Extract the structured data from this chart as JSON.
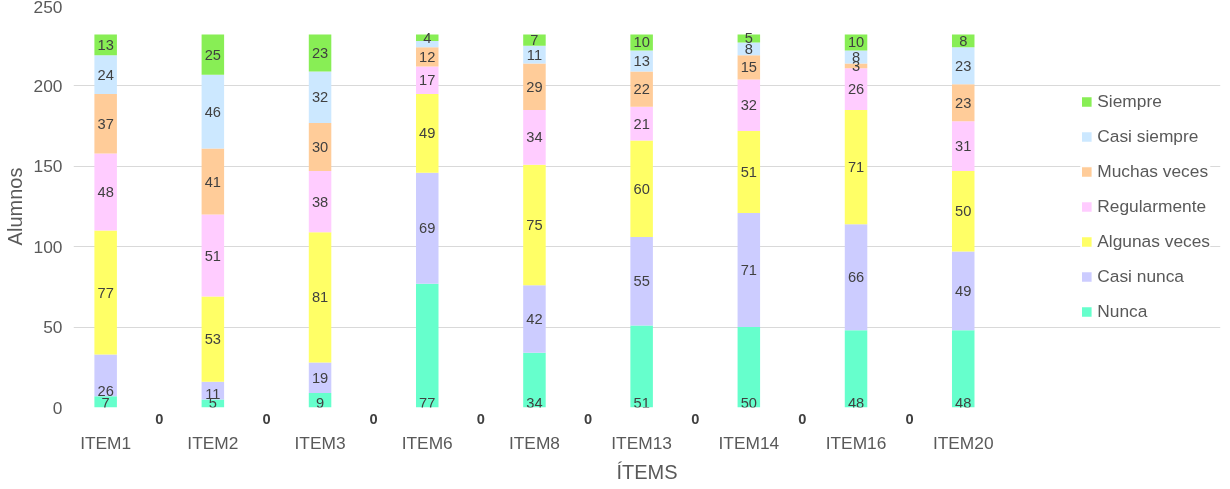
{
  "chart_data": {
    "type": "bar",
    "stacked": true,
    "xlabel": "ÍTEMS",
    "ylabel": "Alumnos",
    "categories": [
      "ITEM1",
      null,
      "ITEM2",
      null,
      "ITEM3",
      null,
      "ITEM6",
      null,
      "ITEM8",
      null,
      "ITEM13",
      null,
      "ITEM14",
      null,
      "ITEM16",
      null,
      "ITEM20"
    ],
    "series": [
      {
        "name": "Nunca",
        "color": "#66ffcc",
        "values": [
          7,
          0,
          5,
          0,
          9,
          0,
          77,
          0,
          34,
          0,
          51,
          0,
          50,
          0,
          48,
          0,
          48
        ],
        "value_labels": [
          "7",
          "0",
          "5",
          "0",
          "9",
          "0",
          "77",
          "0",
          "34",
          "0",
          "51",
          "0",
          "50",
          "0",
          "48",
          "0",
          "48"
        ]
      },
      {
        "name": "Casi nunca",
        "color": "#ccccff",
        "values": [
          26,
          0,
          11,
          0,
          19,
          0,
          69,
          0,
          42,
          0,
          55,
          0,
          71,
          0,
          66,
          0,
          49
        ],
        "value_labels": [
          "26",
          null,
          "11",
          null,
          "19",
          null,
          "69",
          null,
          "42",
          null,
          "55",
          null,
          "71",
          null,
          "66",
          null,
          "49"
        ]
      },
      {
        "name": "Algunas veces",
        "color": "#ffff66",
        "values": [
          77,
          0,
          53,
          0,
          81,
          0,
          49,
          0,
          75,
          0,
          60,
          0,
          51,
          0,
          71,
          0,
          50
        ],
        "value_labels": [
          "77",
          null,
          "53",
          null,
          "81",
          null,
          "49",
          null,
          "75",
          null,
          "60",
          null,
          "51",
          null,
          "71",
          null,
          "50"
        ]
      },
      {
        "name": "Regularmente",
        "color": "#ffccff",
        "values": [
          48,
          0,
          51,
          0,
          38,
          0,
          17,
          0,
          34,
          0,
          21,
          0,
          32,
          0,
          26,
          0,
          31
        ],
        "value_labels": [
          "48",
          null,
          "51",
          null,
          "38",
          null,
          "17",
          null,
          "34",
          null,
          "21",
          null,
          "32",
          null,
          "26",
          null,
          "31"
        ]
      },
      {
        "name": "Muchas veces",
        "color": "#ffcc99",
        "values": [
          37,
          0,
          41,
          0,
          30,
          0,
          12,
          0,
          29,
          0,
          22,
          0,
          15,
          0,
          3,
          0,
          23
        ],
        "value_labels": [
          "37",
          null,
          "41",
          null,
          "30",
          null,
          "12",
          null,
          "29",
          null,
          "22",
          null,
          "15",
          null,
          "3",
          null,
          "23"
        ]
      },
      {
        "name": "Casi siempre",
        "color": "#cce8ff",
        "values": [
          24,
          0,
          46,
          0,
          32,
          0,
          4,
          0,
          11,
          0,
          13,
          0,
          8,
          0,
          8,
          0,
          23
        ],
        "value_labels": [
          "24",
          null,
          "46",
          null,
          "32",
          null,
          null,
          null,
          "11",
          null,
          "13",
          null,
          "8",
          null,
          "8",
          null,
          "23"
        ]
      },
      {
        "name": "Siempre",
        "color": "#88ee55",
        "values": [
          13,
          0,
          25,
          0,
          23,
          0,
          4,
          0,
          7,
          0,
          10,
          0,
          5,
          0,
          10,
          0,
          8
        ],
        "value_labels": [
          "13",
          null,
          "25",
          null,
          "23",
          null,
          "4",
          null,
          "7",
          null,
          "10",
          null,
          "5",
          null,
          "10",
          null,
          "8"
        ]
      }
    ],
    "ylim": [
      0,
      250
    ],
    "yticks": [
      0,
      50,
      100,
      150,
      200,
      250
    ],
    "grid": "y",
    "legend": "right"
  }
}
